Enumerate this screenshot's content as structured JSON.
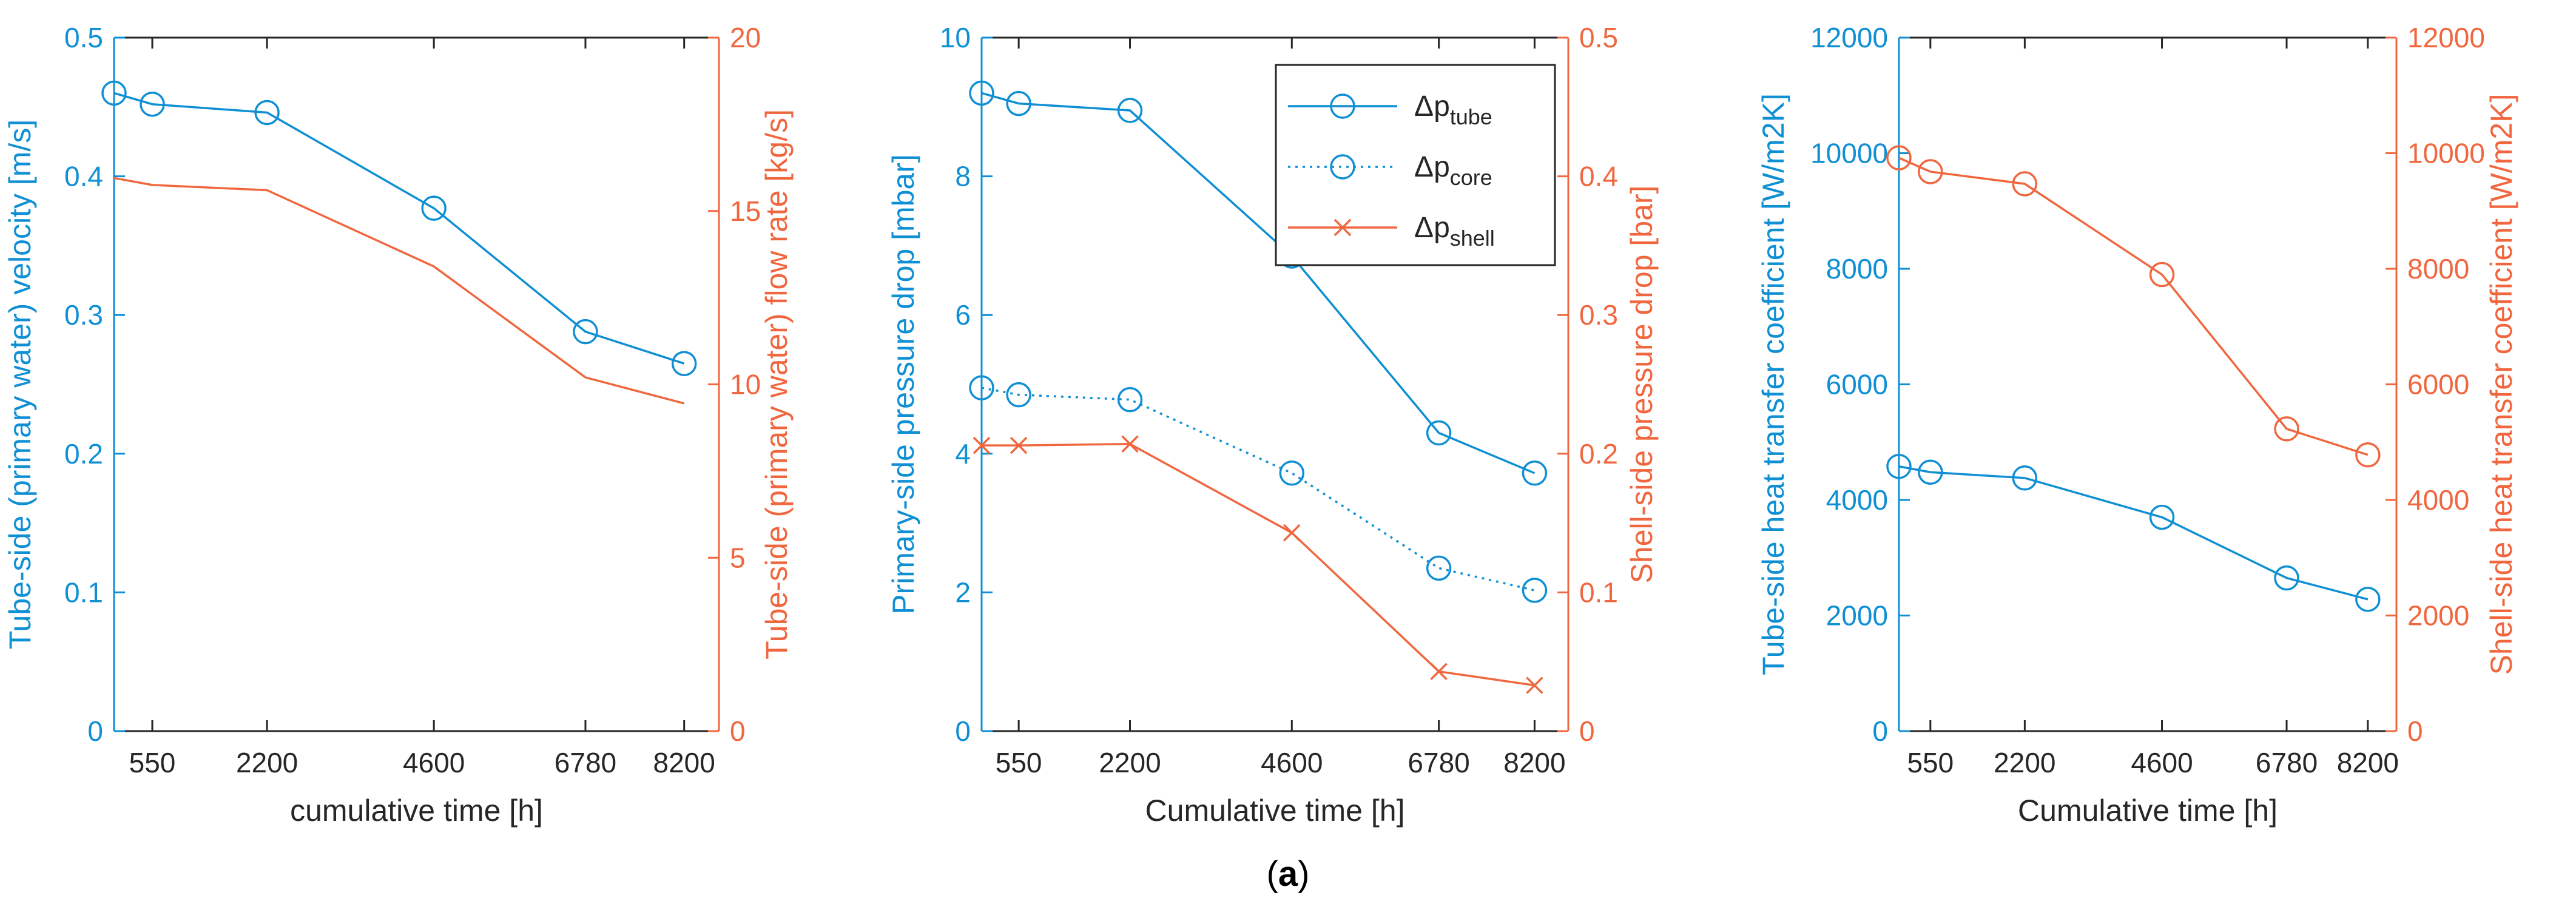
{
  "figure": {
    "caption_open": "(",
    "caption_letter": "a",
    "caption_close": ")"
  },
  "colors": {
    "blue": "#0f8fd4",
    "orange": "#f0673f",
    "axis": "#262626",
    "frame": "#b4b4b4"
  },
  "chart_data": [
    {
      "type": "line",
      "xlabel": "cumulative time [h]",
      "xlim": [
        0,
        8700
      ],
      "xticks": [
        550,
        2200,
        4600,
        6780,
        8200
      ],
      "ylabel_left": "Tube-side (primary water) velocity [m/s]",
      "ylim_left": [
        0,
        0.5
      ],
      "yticks_left": [
        "0",
        "0.1",
        "0.2",
        "0.3",
        "0.4",
        "0.5"
      ],
      "ylabel_right": "Tube-side (primary water) flow rate [kg/s]",
      "ylim_right": [
        0,
        20
      ],
      "yticks_right": [
        "0",
        "5",
        "10",
        "15",
        "20"
      ],
      "series": [
        {
          "name": "velocity",
          "axis": "left",
          "color": "blue",
          "style": "solid",
          "marker": "circle",
          "x": [
            0,
            550,
            2200,
            4600,
            6780,
            8200
          ],
          "y": [
            0.46,
            0.452,
            0.446,
            0.377,
            0.288,
            0.265
          ]
        },
        {
          "name": "flow rate",
          "axis": "right",
          "color": "orange",
          "style": "solid",
          "marker": "none",
          "x": [
            0,
            550,
            2200,
            4600,
            6780,
            8200
          ],
          "y": [
            15.95,
            15.75,
            15.6,
            13.4,
            10.2,
            9.45
          ]
        }
      ]
    },
    {
      "type": "line",
      "xlabel": "Cumulative time [h]",
      "xlim": [
        0,
        8700
      ],
      "xticks": [
        550,
        2200,
        4600,
        6780,
        8200
      ],
      "ylabel_left": "Primary-side pressure drop [mbar]",
      "ylim_left": [
        0,
        10
      ],
      "yticks_left": [
        "0",
        "2",
        "4",
        "6",
        "8",
        "10"
      ],
      "ylabel_right": "Shell-side pressure drop [bar]",
      "ylim_right": [
        0,
        0.5
      ],
      "yticks_right": [
        "0",
        "0.1",
        "0.2",
        "0.3",
        "0.4",
        "0.5"
      ],
      "legend": "top-right",
      "series": [
        {
          "name": "Δp",
          "sub": "tube",
          "axis": "left",
          "color": "blue",
          "style": "solid",
          "marker": "circle",
          "x": [
            0,
            550,
            2200,
            4600,
            6780,
            8200
          ],
          "y": [
            9.2,
            9.05,
            8.95,
            6.85,
            4.3,
            3.72
          ]
        },
        {
          "name": "Δp",
          "sub": "core",
          "axis": "left",
          "color": "blue",
          "style": "dotted",
          "marker": "circle",
          "x": [
            0,
            550,
            2200,
            4600,
            6780,
            8200
          ],
          "y": [
            4.95,
            4.85,
            4.78,
            3.72,
            2.35,
            2.03
          ]
        },
        {
          "name": "Δp",
          "sub": "shell",
          "axis": "right",
          "color": "orange",
          "style": "solid",
          "marker": "x",
          "x": [
            0,
            550,
            2200,
            4600,
            6780,
            8200
          ],
          "y": [
            0.206,
            0.206,
            0.207,
            0.143,
            0.043,
            0.033
          ]
        }
      ]
    },
    {
      "type": "line",
      "xlabel": "Cumulative time [h]",
      "xlim": [
        0,
        8700
      ],
      "xticks": [
        550,
        2200,
        4600,
        6780,
        8200
      ],
      "xtick_labels": [
        "550",
        "2200",
        "4600",
        "6780",
        "8200"
      ],
      "ylabel_left": "Tube-side heat transfer coefficient [W/m2K]",
      "ylim_left": [
        0,
        12000
      ],
      "yticks_left": [
        "0",
        "2000",
        "4000",
        "6000",
        "8000",
        "10000",
        "12000"
      ],
      "ylabel_right": "Shell-side heat transfer coefficient [W/m2K]",
      "ylim_right": [
        0,
        12000
      ],
      "yticks_right": [
        "0",
        "2000",
        "4000",
        "6000",
        "8000",
        "10000",
        "12000"
      ],
      "series": [
        {
          "name": "tube-side HTC",
          "axis": "left",
          "color": "blue",
          "style": "solid",
          "marker": "circle",
          "x": [
            0,
            550,
            2200,
            4600,
            6780,
            8200
          ],
          "y": [
            4580,
            4480,
            4380,
            3700,
            2650,
            2280
          ]
        },
        {
          "name": "shell-side HTC",
          "axis": "right",
          "color": "orange",
          "style": "solid",
          "marker": "circle",
          "x": [
            0,
            550,
            2200,
            4600,
            6780,
            8200
          ],
          "y": [
            9920,
            9680,
            9470,
            7900,
            5230,
            4780
          ]
        }
      ]
    }
  ]
}
